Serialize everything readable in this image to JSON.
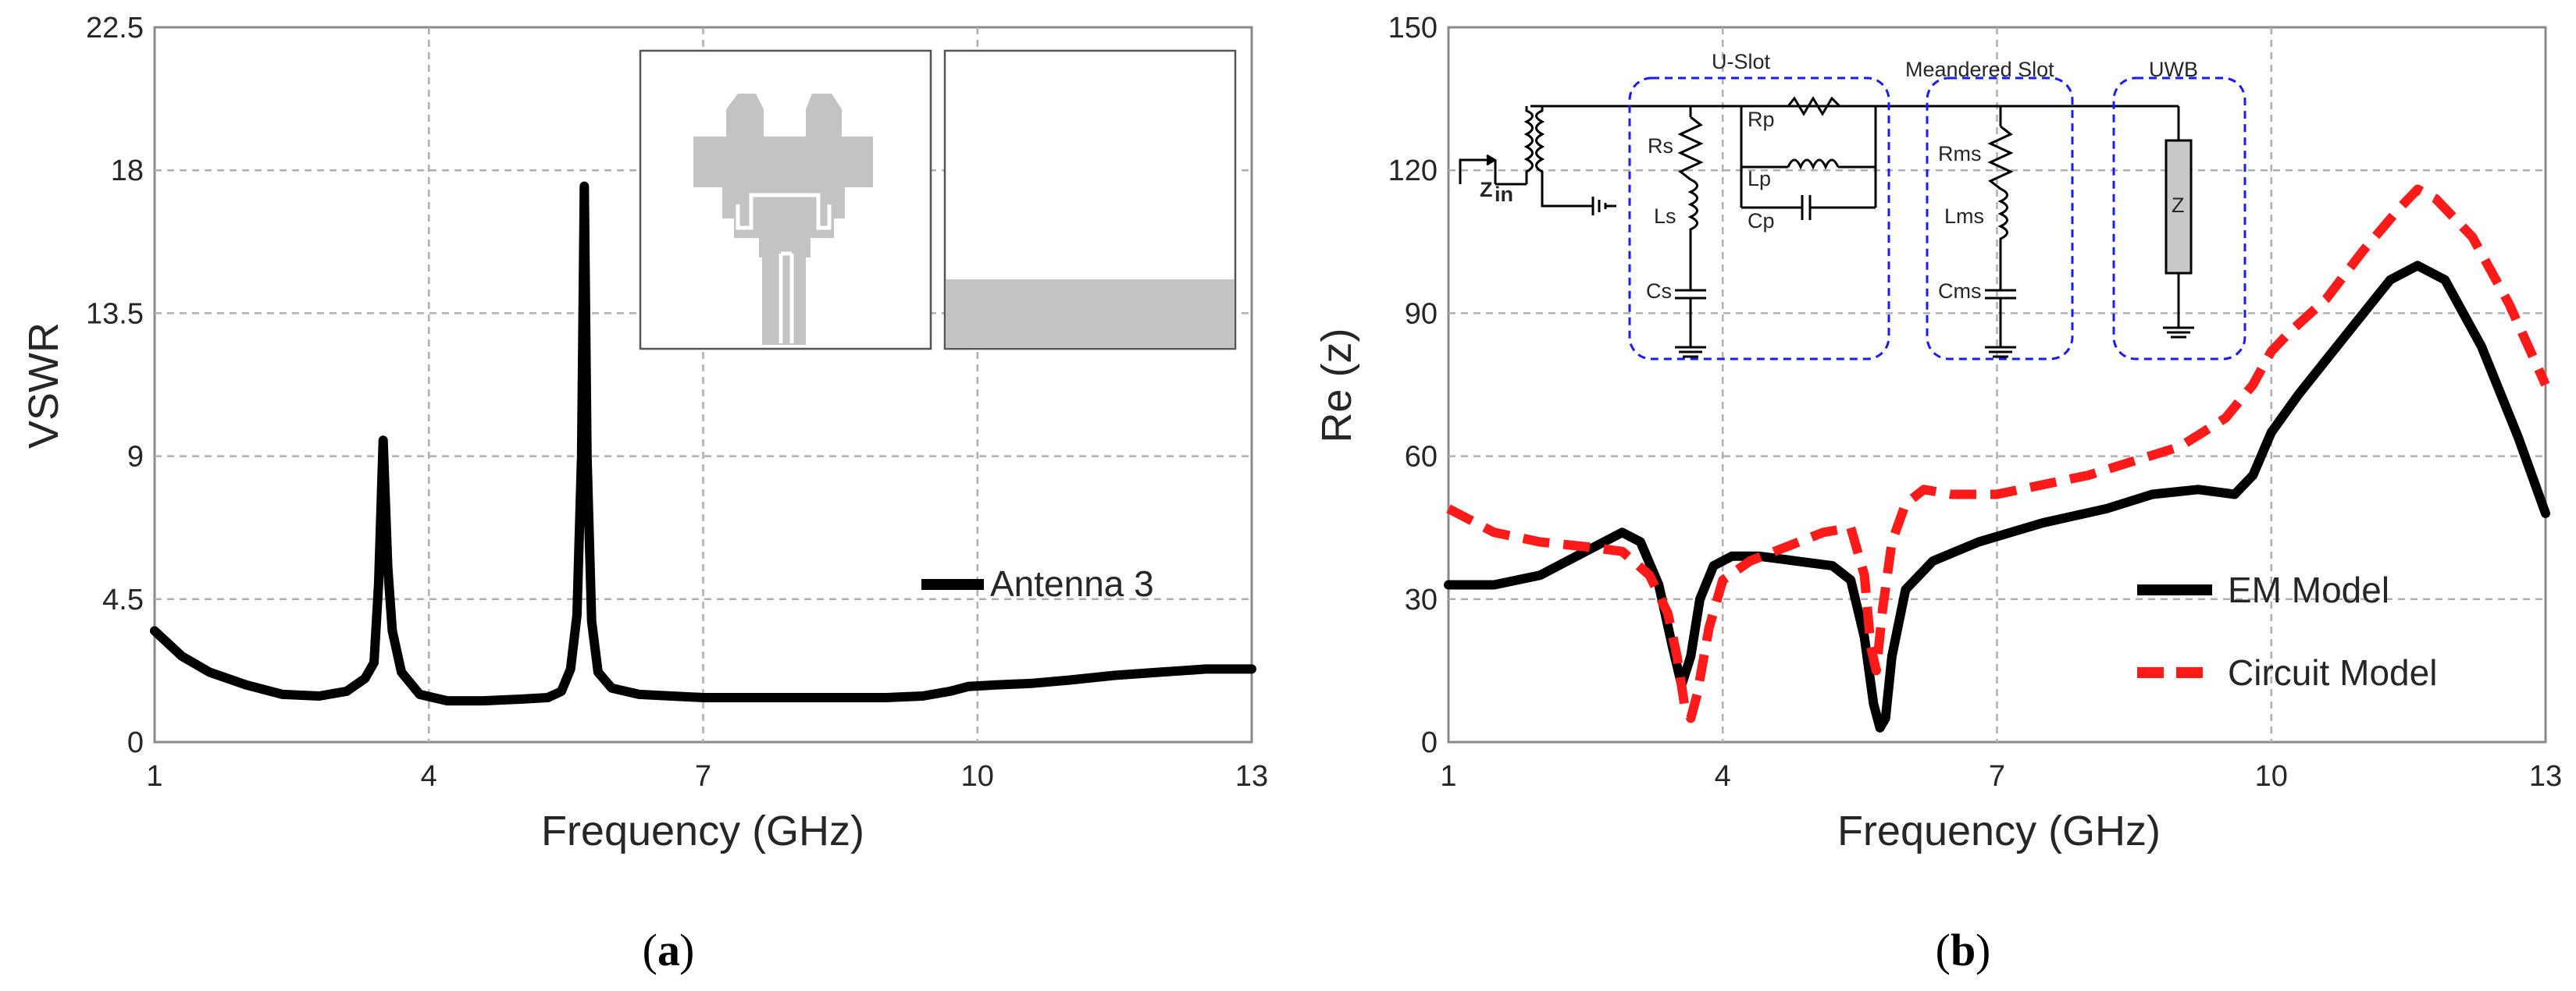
{
  "chart_data": [
    {
      "type": "line",
      "panel_label": "a",
      "xlabel": "Frequency (GHz)",
      "ylabel": "VSWR",
      "xlim": [
        1,
        13
      ],
      "ylim": [
        0,
        22.5
      ],
      "xticks": [
        1,
        4,
        7,
        10,
        13
      ],
      "yticks": [
        0,
        4.5,
        9,
        13.5,
        18,
        22.5
      ],
      "grid": true,
      "legend_position": "bottom-right",
      "series": [
        {
          "name": "Antenna 3",
          "color": "#000000",
          "style": "solid",
          "x": [
            1,
            1.3,
            1.6,
            2,
            2.4,
            2.8,
            3.1,
            3.3,
            3.4,
            3.45,
            3.5,
            3.55,
            3.6,
            3.7,
            3.9,
            4.2,
            4.6,
            5,
            5.3,
            5.45,
            5.55,
            5.62,
            5.67,
            5.7,
            5.73,
            5.78,
            5.85,
            6,
            6.3,
            7,
            8,
            9,
            9.4,
            9.7,
            9.9,
            10.2,
            10.6,
            11,
            11.5,
            12,
            12.5,
            13
          ],
          "y": [
            3.5,
            2.7,
            2.2,
            1.8,
            1.5,
            1.45,
            1.6,
            2,
            2.5,
            5,
            9.5,
            5.5,
            3.5,
            2.2,
            1.5,
            1.3,
            1.3,
            1.35,
            1.4,
            1.6,
            2.3,
            4,
            9,
            17.5,
            9,
            3.8,
            2.2,
            1.7,
            1.5,
            1.4,
            1.4,
            1.4,
            1.45,
            1.6,
            1.75,
            1.8,
            1.85,
            1.95,
            2.1,
            2.2,
            2.3,
            2.3
          ]
        }
      ]
    },
    {
      "type": "line",
      "panel_label": "b",
      "xlabel": "Frequency (GHz)",
      "ylabel": "Re (z)",
      "xlim": [
        1,
        13
      ],
      "ylim": [
        0,
        150
      ],
      "xticks": [
        1,
        4,
        7,
        10,
        13
      ],
      "yticks": [
        0,
        30,
        60,
        90,
        120,
        150
      ],
      "grid": true,
      "legend_position": "bottom-right",
      "series": [
        {
          "name": "EM Model",
          "color": "#000000",
          "style": "solid",
          "x": [
            1,
            1.5,
            2,
            2.5,
            2.9,
            3.1,
            3.3,
            3.45,
            3.55,
            3.65,
            3.75,
            3.9,
            4.1,
            4.4,
            4.8,
            5.2,
            5.4,
            5.55,
            5.65,
            5.72,
            5.78,
            5.85,
            6,
            6.3,
            6.8,
            7.5,
            8.2,
            8.7,
            9.2,
            9.6,
            9.8,
            10,
            10.3,
            10.8,
            11.3,
            11.6,
            11.9,
            12.3,
            12.7,
            13
          ],
          "y": [
            33,
            33,
            35,
            40,
            44,
            42,
            33,
            20,
            12,
            18,
            30,
            37,
            39,
            39,
            38,
            37,
            34,
            22,
            8,
            3,
            5,
            18,
            32,
            38,
            42,
            46,
            49,
            52,
            53,
            52,
            56,
            65,
            73,
            85,
            97,
            100,
            97,
            83,
            64,
            48
          ]
        },
        {
          "name": "Circuit Model",
          "color": "#ff1a1a",
          "style": "dashed",
          "x": [
            1,
            1.5,
            2,
            2.5,
            2.9,
            3.2,
            3.4,
            3.5,
            3.58,
            3.65,
            3.72,
            3.85,
            4,
            4.3,
            4.7,
            5.1,
            5.4,
            5.55,
            5.62,
            5.68,
            5.75,
            5.85,
            6,
            6.2,
            6.5,
            7,
            7.5,
            8,
            8.5,
            9,
            9.5,
            9.8,
            10,
            10.2,
            10.6,
            11,
            11.4,
            11.6,
            11.8,
            12.2,
            12.6,
            13
          ],
          "y": [
            49,
            44,
            42,
            41,
            40,
            35,
            27,
            18,
            8,
            5,
            10,
            24,
            34,
            38,
            41,
            44,
            45,
            35,
            20,
            15,
            28,
            42,
            50,
            53,
            52,
            52,
            54,
            56,
            59,
            62,
            68,
            75,
            82,
            86,
            93,
            103,
            112,
            116,
            114,
            106,
            92,
            75
          ]
        }
      ]
    }
  ],
  "inset": {
    "circuit_labels": {
      "zin": "Z",
      "zin_sub": "in",
      "rs": "Rs",
      "ls": "Ls",
      "cs": "Cs",
      "rp": "Rp",
      "lp": "Lp",
      "cp": "Cp",
      "rms": "Rms",
      "lms": "Lms",
      "cms": "Cms",
      "z": "Z"
    },
    "group_labels": {
      "uslot": "U-Slot",
      "meander": "Meandered Slot",
      "uwb": "UWB"
    }
  },
  "colors": {
    "line_black": "#000000",
    "line_red": "#ff1a1a",
    "grid": "#b0b0b0",
    "axis": "#888888",
    "antenna_fill": "#c3c3c3",
    "inset_box": "#1a1aff"
  }
}
